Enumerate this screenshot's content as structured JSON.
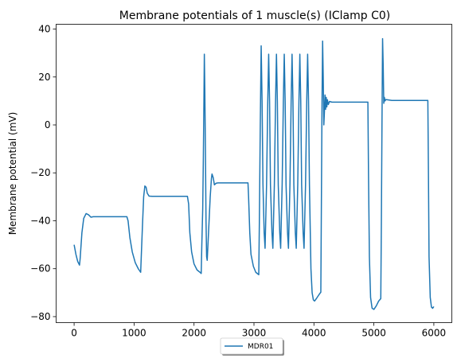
{
  "chart_data": {
    "type": "line",
    "title": "Membrane potentials of 1 muscle(s) (IClamp C0)",
    "xlabel": "",
    "ylabel": "Membrane potential (mV)",
    "xlim": [
      -300,
      6300
    ],
    "ylim": [
      -82.5,
      42
    ],
    "xticks": [
      0,
      1000,
      2000,
      3000,
      4000,
      5000,
      6000
    ],
    "yticks": [
      -80,
      -60,
      -40,
      -20,
      0,
      20,
      40
    ],
    "xtick_labels": [
      "0",
      "1000",
      "2000",
      "3000",
      "4000",
      "5000",
      "6000"
    ],
    "ytick_labels": [
      "−80",
      "−60",
      "−40",
      "−20",
      "0",
      "20",
      "40"
    ],
    "grid": false,
    "legend": {
      "position": "below-center",
      "entries": [
        "MDR01"
      ]
    },
    "series": [
      {
        "name": "MDR01",
        "color": "#1f77b4",
        "points": [
          [
            0,
            -50
          ],
          [
            30,
            -54
          ],
          [
            60,
            -57
          ],
          [
            90,
            -58.5
          ],
          [
            100,
            -56
          ],
          [
            130,
            -45
          ],
          [
            160,
            -39
          ],
          [
            200,
            -37
          ],
          [
            240,
            -37.5
          ],
          [
            280,
            -38.5
          ],
          [
            320,
            -38.3
          ],
          [
            500,
            -38.3
          ],
          [
            700,
            -38.3
          ],
          [
            880,
            -38.3
          ],
          [
            900,
            -40
          ],
          [
            930,
            -47
          ],
          [
            970,
            -53
          ],
          [
            1020,
            -57.5
          ],
          [
            1070,
            -60
          ],
          [
            1110,
            -61.5
          ],
          [
            1120,
            -55
          ],
          [
            1140,
            -42
          ],
          [
            1160,
            -30
          ],
          [
            1180,
            -25.5
          ],
          [
            1200,
            -26
          ],
          [
            1220,
            -28.5
          ],
          [
            1250,
            -29.7
          ],
          [
            1300,
            -29.8
          ],
          [
            1500,
            -29.8
          ],
          [
            1700,
            -29.8
          ],
          [
            1890,
            -29.8
          ],
          [
            1910,
            -33
          ],
          [
            1930,
            -45
          ],
          [
            1960,
            -53
          ],
          [
            2000,
            -58
          ],
          [
            2050,
            -60.5
          ],
          [
            2100,
            -61.5
          ],
          [
            2120,
            -62
          ],
          [
            2130,
            -50
          ],
          [
            2145,
            -35
          ],
          [
            2155,
            -15
          ],
          [
            2165,
            10
          ],
          [
            2172,
            29.5
          ],
          [
            2180,
            15
          ],
          [
            2190,
            -10
          ],
          [
            2200,
            -40
          ],
          [
            2210,
            -55
          ],
          [
            2220,
            -56.5
          ],
          [
            2240,
            -46
          ],
          [
            2270,
            -30
          ],
          [
            2290,
            -22.5
          ],
          [
            2300,
            -20.5
          ],
          [
            2320,
            -22
          ],
          [
            2340,
            -25
          ],
          [
            2370,
            -24.3
          ],
          [
            2400,
            -24.2
          ],
          [
            2600,
            -24.2
          ],
          [
            2900,
            -24.2
          ],
          [
            2910,
            -30
          ],
          [
            2930,
            -45
          ],
          [
            2950,
            -54
          ],
          [
            2990,
            -59
          ],
          [
            3030,
            -61.5
          ],
          [
            3080,
            -62.5
          ],
          [
            3090,
            -40
          ],
          [
            3105,
            0
          ],
          [
            3120,
            33
          ],
          [
            3135,
            10
          ],
          [
            3150,
            -25
          ],
          [
            3170,
            -45
          ],
          [
            3185,
            -51.5
          ],
          [
            3210,
            -25
          ],
          [
            3230,
            10
          ],
          [
            3245,
            29.5
          ],
          [
            3260,
            10
          ],
          [
            3275,
            -25
          ],
          [
            3300,
            -45
          ],
          [
            3315,
            -51.5
          ],
          [
            3340,
            -25
          ],
          [
            3360,
            10
          ],
          [
            3375,
            29.5
          ],
          [
            3390,
            10
          ],
          [
            3405,
            -25
          ],
          [
            3430,
            -45
          ],
          [
            3445,
            -51.5
          ],
          [
            3470,
            -25
          ],
          [
            3490,
            10
          ],
          [
            3505,
            29.5
          ],
          [
            3520,
            10
          ],
          [
            3535,
            -25
          ],
          [
            3560,
            -45
          ],
          [
            3575,
            -51.5
          ],
          [
            3600,
            -25
          ],
          [
            3620,
            10
          ],
          [
            3635,
            29.5
          ],
          [
            3650,
            10
          ],
          [
            3665,
            -25
          ],
          [
            3690,
            -45
          ],
          [
            3705,
            -51.5
          ],
          [
            3730,
            -25
          ],
          [
            3750,
            10
          ],
          [
            3765,
            29.5
          ],
          [
            3780,
            10
          ],
          [
            3795,
            -25
          ],
          [
            3820,
            -45
          ],
          [
            3835,
            -51.5
          ],
          [
            3860,
            -25
          ],
          [
            3880,
            10
          ],
          [
            3895,
            29.5
          ],
          [
            3910,
            10
          ],
          [
            3925,
            -25
          ],
          [
            3950,
            -60
          ],
          [
            3970,
            -70
          ],
          [
            3990,
            -73
          ],
          [
            4010,
            -73.5
          ],
          [
            4040,
            -72.5
          ],
          [
            4080,
            -71
          ],
          [
            4115,
            -69.8
          ],
          [
            4125,
            -30
          ],
          [
            4135,
            10
          ],
          [
            4145,
            35
          ],
          [
            4155,
            20
          ],
          [
            4165,
            0
          ],
          [
            4175,
            5.5
          ],
          [
            4185,
            12.5
          ],
          [
            4195,
            6.5
          ],
          [
            4205,
            11.5
          ],
          [
            4215,
            7.5
          ],
          [
            4225,
            10.5
          ],
          [
            4240,
            8.5
          ],
          [
            4260,
            9.8
          ],
          [
            4300,
            9.5
          ],
          [
            4500,
            9.5
          ],
          [
            4700,
            9.5
          ],
          [
            4900,
            9.5
          ],
          [
            4910,
            -20
          ],
          [
            4925,
            -55
          ],
          [
            4945,
            -72
          ],
          [
            4970,
            -76.5
          ],
          [
            5000,
            -77
          ],
          [
            5040,
            -75.5
          ],
          [
            5080,
            -73.5
          ],
          [
            5115,
            -72.5
          ],
          [
            5125,
            -40
          ],
          [
            5135,
            0
          ],
          [
            5145,
            36
          ],
          [
            5155,
            25
          ],
          [
            5165,
            9
          ],
          [
            5175,
            11.5
          ],
          [
            5185,
            10
          ],
          [
            5200,
            10.6
          ],
          [
            5300,
            10.2
          ],
          [
            5600,
            10.2
          ],
          [
            5900,
            10.2
          ],
          [
            5910,
            -20
          ],
          [
            5920,
            -55
          ],
          [
            5940,
            -72
          ],
          [
            5960,
            -76
          ],
          [
            5980,
            -76.5
          ],
          [
            6000,
            -75.8
          ]
        ]
      }
    ]
  }
}
